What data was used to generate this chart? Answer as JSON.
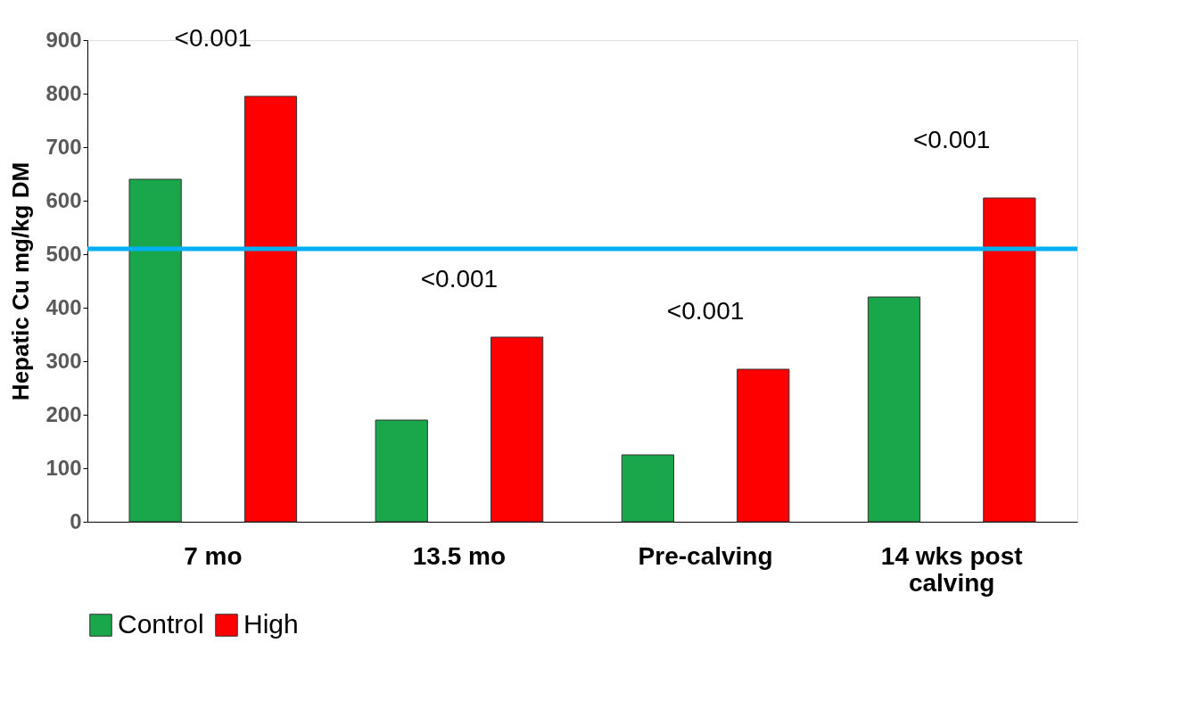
{
  "chart_data": {
    "type": "bar",
    "ylabel": "Hepatic Cu mg/kg DM",
    "categories": [
      "7 mo",
      "13.5 mo",
      "Pre-calving",
      "14 wks post calving"
    ],
    "series": [
      {
        "name": "Control",
        "color": "#1aa64a",
        "values": [
          640,
          190,
          125,
          420
        ]
      },
      {
        "name": "High",
        "color": "#ff0000",
        "values": [
          795,
          345,
          285,
          605
        ]
      }
    ],
    "ylim": [
      0,
      900
    ],
    "yticks": [
      0,
      100,
      200,
      300,
      400,
      500,
      600,
      700,
      800,
      900
    ],
    "ref_lines": [
      {
        "axis": "y",
        "value": 510,
        "color": "#00b0f0"
      }
    ],
    "annotations": [
      "<0.001",
      "<0.001",
      "<0.001",
      "<0.001"
    ],
    "grid": false,
    "legend": "bottom"
  }
}
